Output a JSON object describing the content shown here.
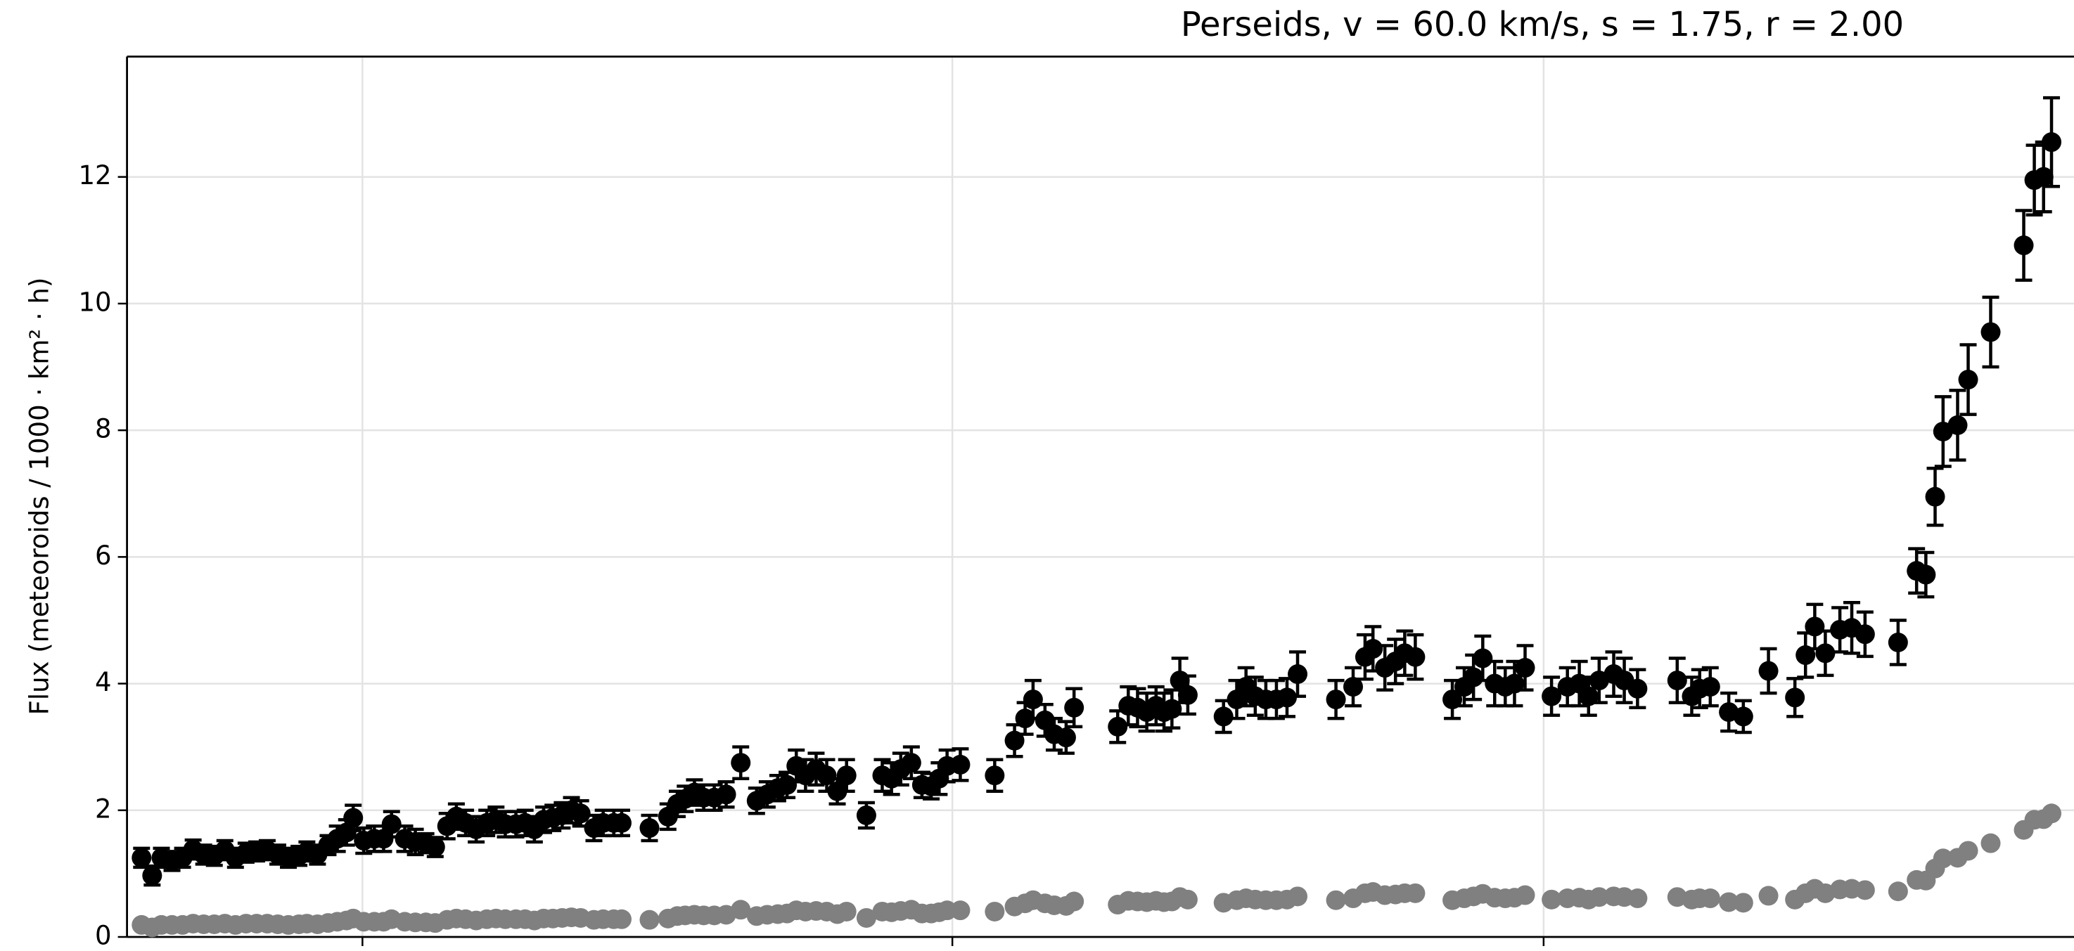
{
  "chart_data": {
    "type": "errorbar-scatter",
    "title": "Perseids, v = 60.0 km/s, s = 1.75, r = 2.00",
    "y_label": "Flux (meteoroids / 1000 · km² · h)",
    "xlim": [
      0,
      1472
    ],
    "xticks": [
      178,
      624,
      1071
    ],
    "ylim": [
      0,
      13.9
    ],
    "yticks": [
      0,
      2,
      4,
      6,
      8,
      10,
      12
    ],
    "grid": true,
    "x": [
      11,
      19,
      26,
      34,
      42,
      50,
      58,
      66,
      74,
      82,
      90,
      98,
      106,
      114,
      122,
      130,
      136,
      144,
      152,
      159,
      166,
      171,
      179,
      187,
      194,
      200,
      210,
      218,
      226,
      233,
      242,
      249,
      256,
      264,
      272,
      279,
      286,
      294,
      301,
      308,
      315,
      322,
      329,
      336,
      343,
      353,
      360,
      368,
      374,
      395,
      409,
      416,
      422,
      429,
      436,
      444,
      453,
      464,
      476,
      484,
      492,
      499,
      506,
      513,
      521,
      529,
      537,
      544,
      559,
      571,
      578,
      585,
      593,
      601,
      608,
      614,
      620,
      630,
      656,
      671,
      679,
      685,
      694,
      701,
      710,
      716,
      749,
      757,
      764,
      771,
      778,
      784,
      790,
      796,
      802,
      829,
      839,
      846,
      853,
      861,
      869,
      877,
      885,
      914,
      927,
      936,
      942,
      951,
      959,
      966,
      974,
      1002,
      1011,
      1018,
      1025,
      1034,
      1042,
      1049,
      1057,
      1077,
      1089,
      1098,
      1105,
      1113,
      1124,
      1132,
      1142,
      1172,
      1183,
      1189,
      1197,
      1211,
      1222,
      1241,
      1261,
      1269,
      1276,
      1284,
      1295,
      1304,
      1314,
      1339,
      1353,
      1360,
      1367,
      1373,
      1384,
      1392,
      1409,
      1434,
      1442,
      1449,
      1455
    ],
    "series": [
      {
        "color": "#808080",
        "values": [
          0.19,
          0.15,
          0.19,
          0.19,
          0.19,
          0.21,
          0.2,
          0.2,
          0.21,
          0.19,
          0.21,
          0.21,
          0.21,
          0.2,
          0.19,
          0.2,
          0.21,
          0.2,
          0.22,
          0.24,
          0.26,
          0.29,
          0.24,
          0.24,
          0.24,
          0.28,
          0.24,
          0.23,
          0.23,
          0.22,
          0.27,
          0.29,
          0.28,
          0.26,
          0.28,
          0.29,
          0.28,
          0.28,
          0.28,
          0.26,
          0.29,
          0.29,
          0.3,
          0.31,
          0.3,
          0.27,
          0.28,
          0.28,
          0.28,
          0.27,
          0.29,
          0.33,
          0.34,
          0.35,
          0.34,
          0.34,
          0.35,
          0.43,
          0.33,
          0.35,
          0.36,
          0.37,
          0.42,
          0.4,
          0.41,
          0.4,
          0.36,
          0.4,
          0.3,
          0.4,
          0.39,
          0.41,
          0.43,
          0.37,
          0.37,
          0.39,
          0.42,
          0.42,
          0.4,
          0.48,
          0.53,
          0.58,
          0.53,
          0.5,
          0.49,
          0.56,
          0.51,
          0.57,
          0.56,
          0.55,
          0.57,
          0.55,
          0.56,
          0.63,
          0.59,
          0.54,
          0.58,
          0.61,
          0.59,
          0.58,
          0.58,
          0.59,
          0.64,
          0.58,
          0.61,
          0.69,
          0.71,
          0.66,
          0.67,
          0.69,
          0.69,
          0.58,
          0.61,
          0.64,
          0.68,
          0.62,
          0.61,
          0.62,
          0.66,
          0.59,
          0.61,
          0.62,
          0.59,
          0.63,
          0.64,
          0.63,
          0.61,
          0.63,
          0.59,
          0.61,
          0.61,
          0.55,
          0.54,
          0.65,
          0.59,
          0.69,
          0.76,
          0.69,
          0.75,
          0.76,
          0.74,
          0.72,
          0.9,
          0.89,
          1.08,
          1.24,
          1.25,
          1.36,
          1.48,
          1.69,
          1.85,
          1.86,
          1.95
        ]
      },
      {
        "color": "#000000",
        "values": [
          1.25,
          0.97,
          1.25,
          1.2,
          1.25,
          1.38,
          1.3,
          1.28,
          1.37,
          1.25,
          1.33,
          1.35,
          1.37,
          1.3,
          1.25,
          1.28,
          1.35,
          1.3,
          1.45,
          1.55,
          1.65,
          1.88,
          1.52,
          1.55,
          1.55,
          1.78,
          1.55,
          1.5,
          1.48,
          1.42,
          1.75,
          1.9,
          1.8,
          1.7,
          1.8,
          1.85,
          1.78,
          1.78,
          1.8,
          1.7,
          1.85,
          1.88,
          1.92,
          2.0,
          1.95,
          1.72,
          1.8,
          1.8,
          1.8,
          1.72,
          1.9,
          2.1,
          2.18,
          2.28,
          2.2,
          2.2,
          2.25,
          2.75,
          2.15,
          2.25,
          2.35,
          2.4,
          2.7,
          2.55,
          2.65,
          2.55,
          2.3,
          2.55,
          1.92,
          2.55,
          2.5,
          2.65,
          2.75,
          2.4,
          2.38,
          2.5,
          2.7,
          2.72,
          2.55,
          3.1,
          3.45,
          3.75,
          3.42,
          3.2,
          3.15,
          3.62,
          3.32,
          3.65,
          3.62,
          3.55,
          3.65,
          3.55,
          3.6,
          4.05,
          3.82,
          3.48,
          3.75,
          3.95,
          3.8,
          3.75,
          3.75,
          3.78,
          4.15,
          3.75,
          3.95,
          4.42,
          4.55,
          4.25,
          4.35,
          4.48,
          4.42,
          3.75,
          3.95,
          4.1,
          4.4,
          4.0,
          3.95,
          4.0,
          4.25,
          3.8,
          3.95,
          4.0,
          3.8,
          4.05,
          4.15,
          4.05,
          3.92,
          4.05,
          3.8,
          3.92,
          3.95,
          3.55,
          3.48,
          4.2,
          3.78,
          4.45,
          4.9,
          4.48,
          4.85,
          4.88,
          4.78,
          4.65,
          5.78,
          5.72,
          6.95,
          7.98,
          8.08,
          8.8,
          9.55,
          10.92,
          11.95,
          12.0,
          12.55
        ],
        "errors": [
          0.15,
          0.15,
          0.15,
          0.15,
          0.15,
          0.15,
          0.15,
          0.15,
          0.15,
          0.15,
          0.15,
          0.15,
          0.15,
          0.15,
          0.15,
          0.15,
          0.15,
          0.15,
          0.15,
          0.2,
          0.2,
          0.2,
          0.2,
          0.2,
          0.2,
          0.2,
          0.2,
          0.2,
          0.15,
          0.15,
          0.2,
          0.2,
          0.2,
          0.2,
          0.2,
          0.2,
          0.2,
          0.2,
          0.2,
          0.2,
          0.2,
          0.2,
          0.2,
          0.2,
          0.2,
          0.2,
          0.2,
          0.2,
          0.2,
          0.2,
          0.2,
          0.2,
          0.2,
          0.2,
          0.2,
          0.2,
          0.2,
          0.25,
          0.2,
          0.2,
          0.2,
          0.2,
          0.25,
          0.25,
          0.25,
          0.25,
          0.2,
          0.25,
          0.2,
          0.25,
          0.25,
          0.25,
          0.25,
          0.2,
          0.2,
          0.25,
          0.25,
          0.25,
          0.25,
          0.25,
          0.25,
          0.3,
          0.25,
          0.25,
          0.25,
          0.3,
          0.25,
          0.3,
          0.3,
          0.3,
          0.3,
          0.3,
          0.3,
          0.35,
          0.3,
          0.25,
          0.3,
          0.3,
          0.3,
          0.3,
          0.3,
          0.3,
          0.35,
          0.3,
          0.3,
          0.35,
          0.35,
          0.35,
          0.35,
          0.35,
          0.35,
          0.3,
          0.3,
          0.35,
          0.35,
          0.35,
          0.3,
          0.35,
          0.35,
          0.3,
          0.3,
          0.35,
          0.3,
          0.35,
          0.35,
          0.35,
          0.3,
          0.35,
          0.3,
          0.3,
          0.3,
          0.3,
          0.25,
          0.35,
          0.3,
          0.35,
          0.35,
          0.35,
          0.35,
          0.4,
          0.35,
          0.35,
          0.35,
          0.35,
          0.45,
          0.55,
          0.55,
          0.55,
          0.55,
          0.55,
          0.55,
          0.55,
          0.7
        ]
      }
    ]
  }
}
